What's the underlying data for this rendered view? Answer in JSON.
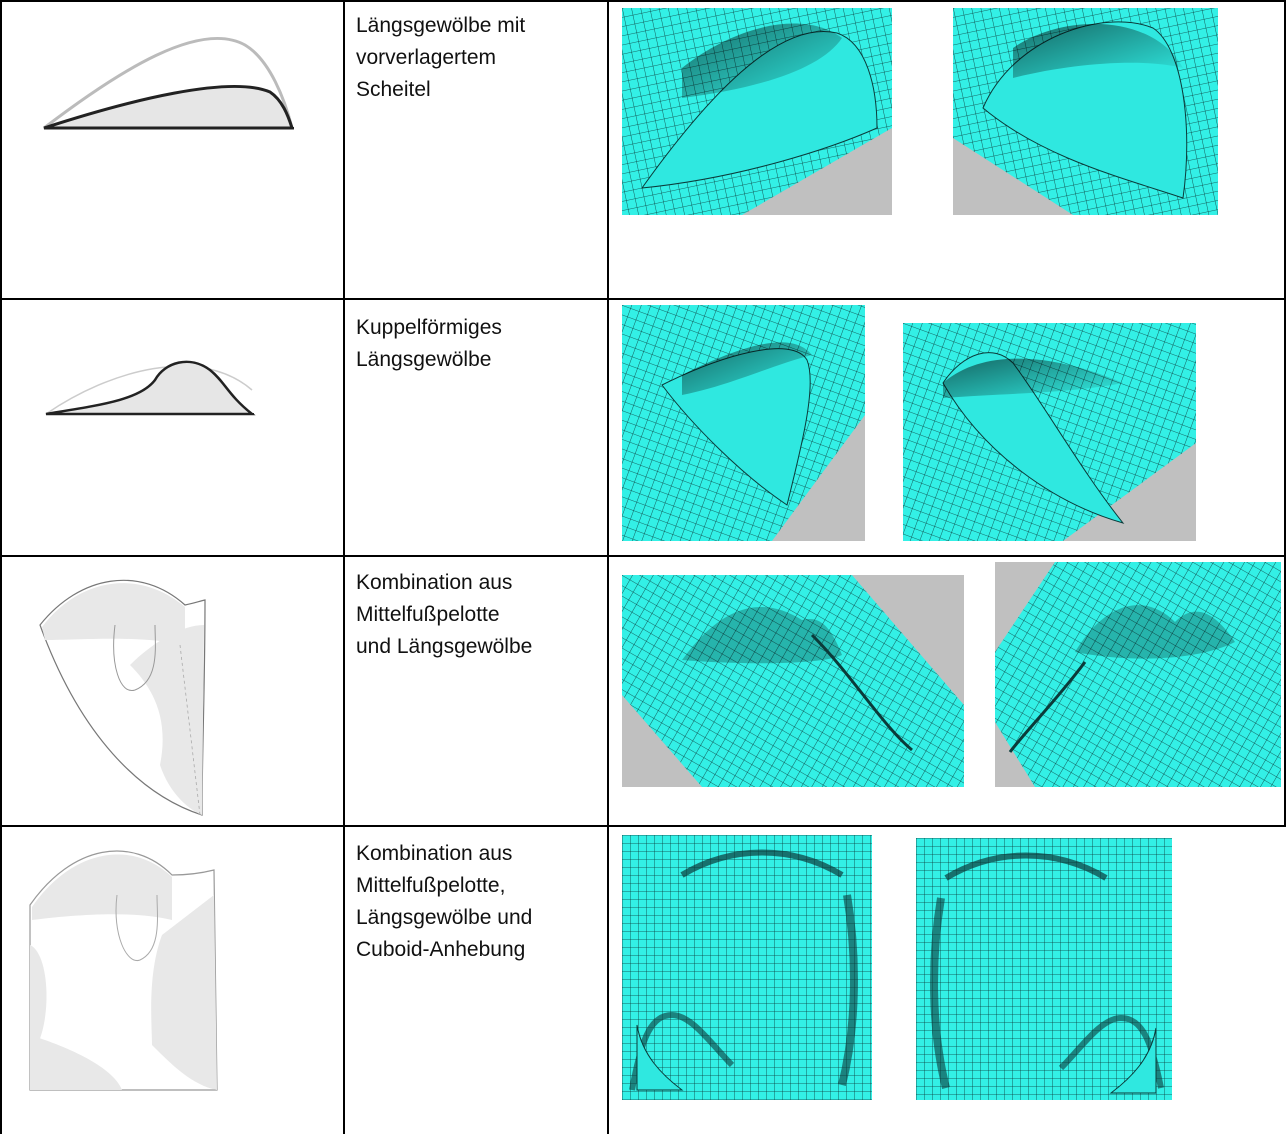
{
  "rows": [
    {
      "caption_lines": [
        "Längsgewölbe mit",
        "vorverlagertem",
        "Scheitel"
      ],
      "sketch_icon": "arch-profile-forward-apex",
      "mesh_icon": "cyan-mesh-arch"
    },
    {
      "caption_lines": [
        "Kuppelförmiges",
        "Längsgewölbe"
      ],
      "sketch_icon": "dome-profile",
      "mesh_icon": "cyan-mesh-dome"
    },
    {
      "caption_lines": [
        "Kombination aus",
        "Mittelfußpelotte",
        "und Längsgewölbe"
      ],
      "sketch_icon": "insole-outline-pelotte-arch",
      "mesh_icon": "cyan-mesh-pelotte-arch"
    },
    {
      "caption_lines": [
        "Kombination aus",
        "Mittelfußpelotte,",
        "Längsgewölbe und",
        "Cuboid-Anhebung"
      ],
      "sketch_icon": "insole-outline-pelotte-arch-cuboid",
      "mesh_icon": "cyan-mesh-topview"
    }
  ],
  "colors": {
    "mesh": "#33f0e6",
    "mesh_line": "#0b3b3a",
    "backdrop": "#c0c0c0",
    "border": "#000000"
  }
}
